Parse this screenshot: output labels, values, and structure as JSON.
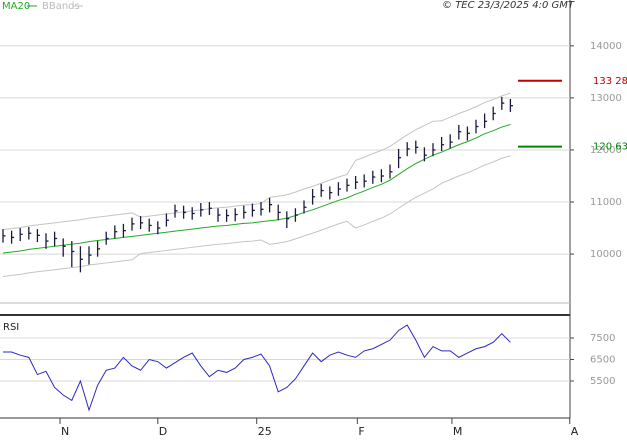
{
  "chart_data": [
    {
      "type": "ohlc",
      "source": "© TEC 23/3/2025 4:0 GMT",
      "xlim": [
        -0.35,
        65.93
      ],
      "ylim": [
        88.3,
        148.8
      ],
      "yticks": [
        {
          "value": 140,
          "label": "14000"
        },
        {
          "value": 130,
          "label": "13000"
        },
        {
          "value": 120,
          "label": "12000"
        },
        {
          "value": 110,
          "label": "11000"
        },
        {
          "value": 100,
          "label": "10000"
        }
      ],
      "grid": true,
      "bar_color": "#1a1a40",
      "high": [
        104.8,
        104.5,
        105,
        105.2,
        104.8,
        104,
        104.3,
        103,
        102.5,
        101.5,
        101.5,
        102.5,
        104.3,
        105.5,
        105.8,
        107,
        107.3,
        106.8,
        106.3,
        107.8,
        109.5,
        109.3,
        109,
        109.8,
        110,
        108.8,
        108.6,
        108.8,
        109.3,
        109.7,
        110,
        110.8,
        109.5,
        108.2,
        108.8,
        110.3,
        112.5,
        113.5,
        113,
        113.8,
        114.5,
        115,
        115.3,
        116,
        116.3,
        117.2,
        120.2,
        121.5,
        121.8,
        120.5,
        121.3,
        122.5,
        123,
        124.8,
        124.5,
        125.8,
        127,
        128.3,
        130.2,
        129.8
      ],
      "low": [
        102.2,
        102,
        102.5,
        102.8,
        102.3,
        101,
        101.5,
        99.5,
        97.5,
        96.5,
        98,
        99.5,
        101.8,
        103,
        103.2,
        104.5,
        104.8,
        104.3,
        103.8,
        105.3,
        107,
        106.8,
        106.6,
        107.2,
        107.5,
        106.2,
        106.2,
        106.3,
        106.8,
        107.2,
        107.4,
        108,
        106.5,
        105,
        106.2,
        107.8,
        109.5,
        111,
        110.5,
        111.2,
        112,
        112.5,
        112.8,
        113.5,
        113.8,
        114.5,
        116.5,
        118.8,
        119.3,
        117.8,
        118.8,
        119.8,
        120.3,
        122,
        121.8,
        123.2,
        124.2,
        125.7,
        127.7,
        127.3
      ],
      "close": [
        103.5,
        103.2,
        103.8,
        104,
        103.6,
        102.5,
        103,
        101.5,
        100.5,
        99,
        99.8,
        101,
        103,
        104.3,
        104.5,
        105.8,
        106,
        105.5,
        105,
        106.5,
        108.3,
        108,
        107.8,
        108.5,
        108.8,
        107.5,
        107.4,
        107.6,
        108,
        108.4,
        108.6,
        109.5,
        108,
        106.8,
        107.5,
        109,
        111,
        112.2,
        111.8,
        112.5,
        113.2,
        113.8,
        114,
        114.8,
        115,
        115.8,
        118.5,
        120.2,
        120.5,
        119,
        120,
        121,
        121.5,
        123.5,
        123.2,
        124.5,
        125.5,
        127,
        129,
        128.5
      ],
      "series": [
        {
          "name": "MA20",
          "color": "#22aa22",
          "values": [
            100.2,
            100.4,
            100.6,
            100.9,
            101.1,
            101.3,
            101.5,
            101.7,
            101.9,
            102.1,
            102.4,
            102.6,
            102.8,
            103.0,
            103.2,
            103.4,
            103.6,
            103.8,
            104.0,
            104.2,
            104.4,
            104.6,
            104.8,
            105.0,
            105.2,
            105.4,
            105.5,
            105.7,
            105.9,
            106.0,
            106.2,
            106.4,
            106.6,
            106.9,
            107.4,
            108.0,
            108.5,
            109.1,
            109.7,
            110.3,
            110.8,
            111.5,
            112.1,
            112.8,
            113.4,
            114.2,
            115.3,
            116.4,
            117.4,
            118.2,
            119.0,
            119.6,
            120.3,
            121.0,
            121.6,
            122.3,
            123.1,
            123.7,
            124.4,
            124.9
          ]
        },
        {
          "name": "BBands",
          "color": "#c4c4c4",
          "upper": [
            104.7,
            104.9,
            105.1,
            105.4,
            105.6,
            105.8,
            106.0,
            106.2,
            106.4,
            106.6,
            106.9,
            107.1,
            107.3,
            107.5,
            107.7,
            107.9,
            107.1,
            107.3,
            107.5,
            107.7,
            107.9,
            108.1,
            108.3,
            108.5,
            108.7,
            108.9,
            109.0,
            109.2,
            109.4,
            109.5,
            109.7,
            110.9,
            111.1,
            111.4,
            111.9,
            112.5,
            113.0,
            113.6,
            114.2,
            114.8,
            115.3,
            118.0,
            118.6,
            119.3,
            119.9,
            120.7,
            121.8,
            122.9,
            123.9,
            124.7,
            125.5,
            125.6,
            126.3,
            127.0,
            127.6,
            128.3,
            129.1,
            129.7,
            130.4,
            130.9
          ],
          "lower": [
            95.7,
            95.9,
            96.1,
            96.4,
            96.6,
            96.8,
            97.0,
            97.2,
            97.4,
            97.6,
            97.9,
            98.1,
            98.3,
            98.5,
            98.7,
            98.9,
            100.1,
            100.3,
            100.5,
            100.7,
            100.9,
            101.1,
            101.3,
            101.5,
            101.7,
            101.9,
            102.0,
            102.2,
            102.4,
            102.5,
            102.7,
            101.9,
            102.1,
            102.4,
            102.9,
            103.5,
            104.0,
            104.6,
            105.2,
            105.8,
            106.3,
            105.0,
            105.6,
            106.3,
            106.9,
            107.7,
            108.8,
            109.9,
            110.9,
            111.7,
            112.5,
            113.6,
            114.3,
            115.0,
            115.6,
            116.3,
            117.1,
            117.7,
            118.4,
            118.9
          ]
        }
      ],
      "levels": [
        {
          "value": 133.28,
          "label": "133 28",
          "color": "#c00000"
        },
        {
          "value": 120.63,
          "label": "120 63",
          "color": "#008800"
        }
      ]
    },
    {
      "type": "line",
      "title": "RSI",
      "xlim": [
        -0.35,
        65.93
      ],
      "ylim": [
        37.8,
        84.3
      ],
      "yticks": [
        {
          "value": 75,
          "label": "7500"
        },
        {
          "value": 65,
          "label": "6500"
        },
        {
          "value": 55,
          "label": "5500"
        }
      ],
      "xticks": [
        {
          "value": 6.63,
          "label": "N"
        },
        {
          "value": 18.0,
          "label": "D"
        },
        {
          "value": 29.5,
          "label": "25"
        },
        {
          "value": 41.2,
          "label": "F"
        },
        {
          "value": 52.2,
          "label": "M"
        },
        {
          "value": 65.9,
          "label": "A"
        }
      ],
      "grid": true,
      "series": [
        {
          "name": "RSI",
          "color": "#2a2ac0",
          "values": [
            68.5,
            68.5,
            67,
            66,
            58,
            59.5,
            52,
            48.5,
            46,
            55,
            41.5,
            53,
            60,
            61,
            66,
            62,
            60,
            65,
            64,
            61,
            63.5,
            66,
            68,
            62,
            57,
            60,
            59,
            61,
            65,
            66,
            67.5,
            62,
            50,
            52,
            56,
            62,
            68,
            64,
            67,
            68.5,
            67,
            66,
            69,
            70,
            72,
            74,
            78.5,
            81,
            74,
            66,
            71,
            69,
            69,
            66,
            68,
            70,
            71,
            73,
            77,
            73
          ]
        }
      ]
    }
  ]
}
